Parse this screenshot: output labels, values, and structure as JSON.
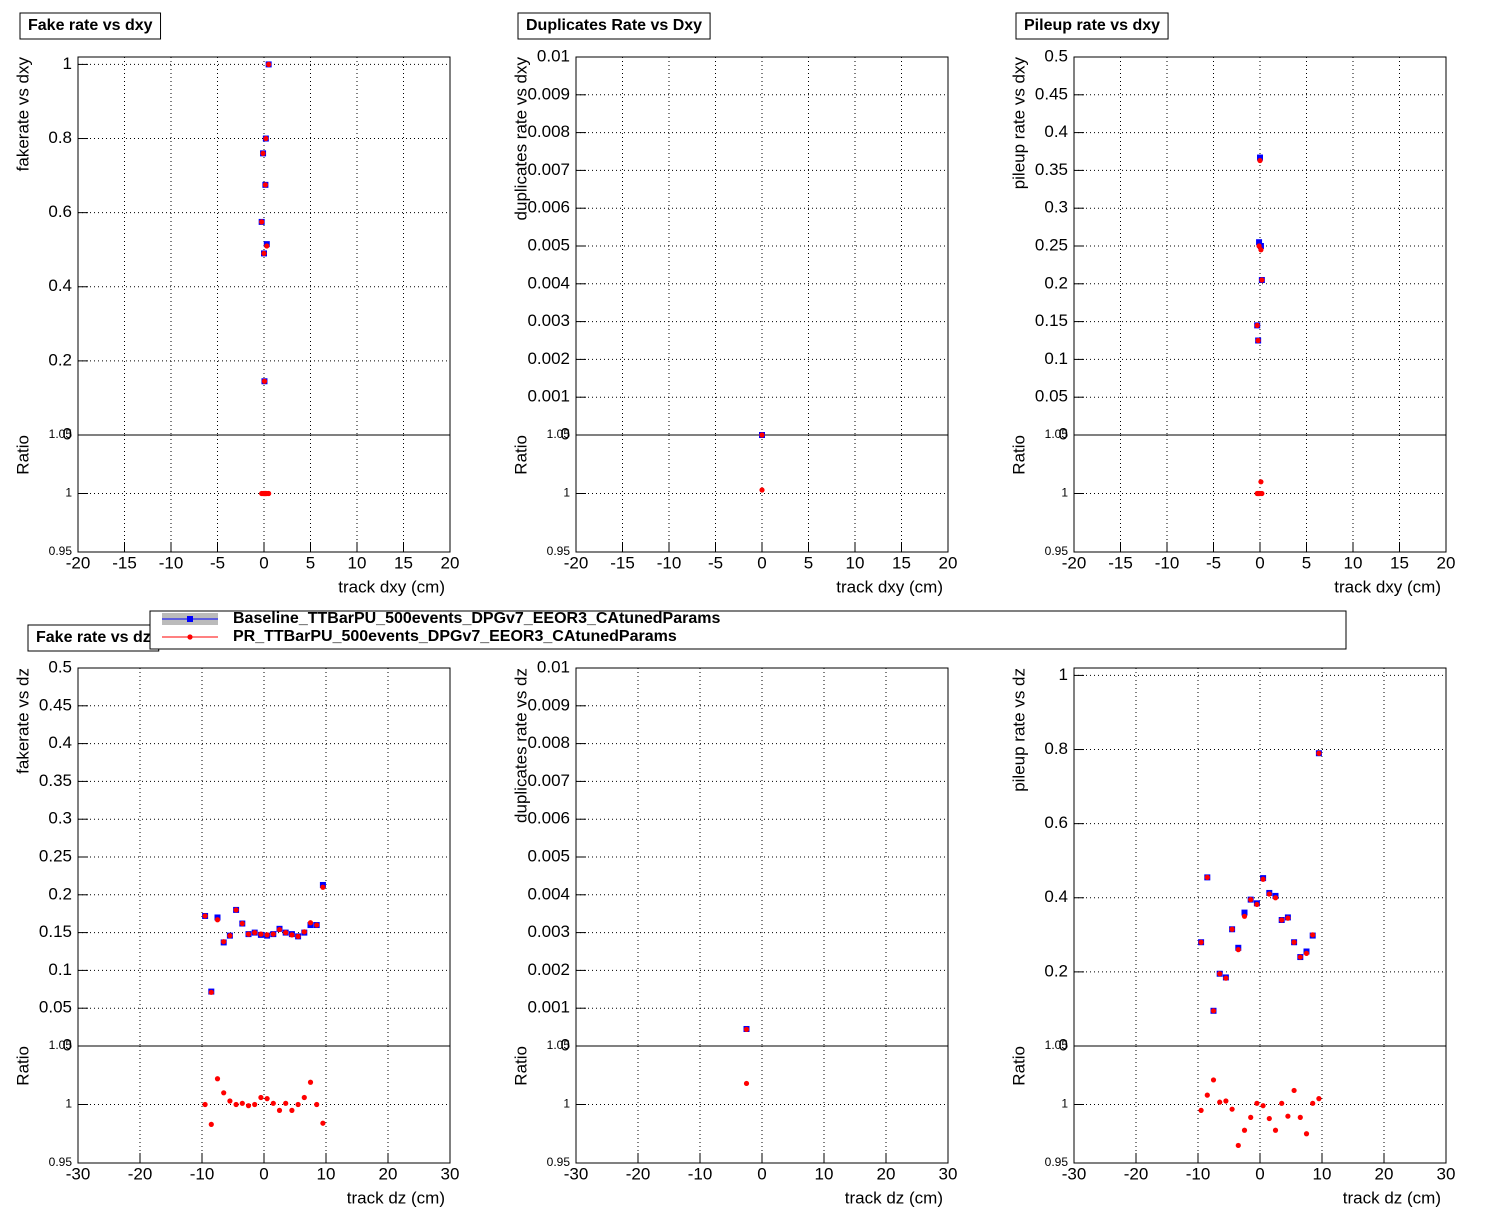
{
  "chart_data": [
    {
      "type": "scatter",
      "title": "Fake rate vs dxy",
      "ylabel": "fakerate vs dxy",
      "xlabel": "track dxy (cm)",
      "ratio_label": "Ratio",
      "xlim": [
        -20,
        20
      ],
      "xticks": [
        -20,
        -15,
        -10,
        -5,
        0,
        5,
        10,
        15,
        20
      ],
      "ylim": [
        0,
        1.02
      ],
      "yticks": [
        0,
        0.2,
        0.4,
        0.6,
        0.8,
        1
      ],
      "ratio_ylim": [
        0.95,
        1.05
      ],
      "ratio_yticks": [
        0.95,
        1,
        1.05
      ],
      "grid": true,
      "x": [
        -0.25,
        -0.1,
        0,
        0.05,
        0.15,
        0.2,
        0.3,
        0.5
      ],
      "series": [
        {
          "name": "Baseline_TTBarPU_500events_DPGv7_EEOR3_CAtunedParams",
          "color": "#0000ff",
          "values": [
            0.575,
            0.76,
            0.49,
            0.145,
            0.675,
            0.8,
            0.515,
            1.0
          ]
        },
        {
          "name": "PR_TTBarPU_500events_DPGv7_EEOR3_CAtunedParams",
          "color": "#ff0000",
          "values": [
            0.575,
            0.76,
            0.49,
            0.145,
            0.675,
            0.8,
            0.51,
            1.0
          ],
          "ratio": [
            1.0,
            1.0,
            1.0,
            1.0,
            1.0,
            1.0,
            1.0,
            1.0
          ]
        }
      ]
    },
    {
      "type": "scatter",
      "title": "Duplicates Rate vs Dxy",
      "ylabel": "duplicates rate vs dxy",
      "xlabel": "track dxy (cm)",
      "ratio_label": "Ratio",
      "xlim": [
        -20,
        20
      ],
      "xticks": [
        -20,
        -15,
        -10,
        -5,
        0,
        5,
        10,
        15,
        20
      ],
      "ylim": [
        0,
        0.01
      ],
      "yticks": [
        0,
        0.001,
        0.002,
        0.003,
        0.004,
        0.005,
        0.006,
        0.007,
        0.008,
        0.009,
        0.01
      ],
      "ratio_ylim": [
        0.95,
        1.05
      ],
      "ratio_yticks": [
        0.95,
        1,
        1.05
      ],
      "grid": true,
      "x": [
        0
      ],
      "series": [
        {
          "color": "#0000ff",
          "values": [
            0
          ]
        },
        {
          "color": "#ff0000",
          "values": [
            0
          ],
          "ratio": [
            1.003
          ]
        }
      ]
    },
    {
      "type": "scatter",
      "title": "Pileup rate vs dxy",
      "ylabel": "pileup rate vs dxy",
      "xlabel": "track dxy (cm)",
      "ratio_label": "Ratio",
      "xlim": [
        -20,
        20
      ],
      "xticks": [
        -20,
        -15,
        -10,
        -5,
        0,
        5,
        10,
        15,
        20
      ],
      "ylim": [
        0,
        0.5
      ],
      "yticks": [
        0,
        0.05,
        0.1,
        0.15,
        0.2,
        0.25,
        0.3,
        0.35,
        0.4,
        0.45,
        0.5
      ],
      "ratio_ylim": [
        0.95,
        1.05
      ],
      "ratio_yticks": [
        0.95,
        1,
        1.05
      ],
      "grid": true,
      "x": [
        -0.3,
        -0.2,
        -0.1,
        0,
        0.1,
        0.2
      ],
      "series": [
        {
          "color": "#0000ff",
          "values": [
            0.145,
            0.125,
            0.255,
            0.367,
            0.25,
            0.205
          ]
        },
        {
          "color": "#ff0000",
          "values": [
            0.145,
            0.125,
            0.25,
            0.363,
            0.245,
            0.205
          ],
          "ratio": [
            1.0,
            1.0,
            1.0,
            1.0,
            1.01,
            1.0
          ]
        }
      ]
    },
    {
      "type": "scatter",
      "title": "Fake rate vs dz",
      "ylabel": "fakerate vs dz",
      "xlabel": "track dz (cm)",
      "ratio_label": "Ratio",
      "xlim": [
        -30,
        30
      ],
      "xticks": [
        -30,
        -20,
        -10,
        0,
        10,
        20,
        30
      ],
      "ylim": [
        0,
        0.5
      ],
      "yticks": [
        0,
        0.05,
        0.1,
        0.15,
        0.2,
        0.25,
        0.3,
        0.35,
        0.4,
        0.45,
        0.5
      ],
      "ratio_ylim": [
        0.95,
        1.05
      ],
      "ratio_yticks": [
        0.95,
        1,
        1.05
      ],
      "grid": true,
      "x": [
        -9.5,
        -8.5,
        -7.5,
        -6.5,
        -5.5,
        -4.5,
        -3.5,
        -2.5,
        -1.5,
        -0.5,
        0.5,
        1.5,
        2.5,
        3.5,
        4.5,
        5.5,
        6.5,
        7.5,
        8.5,
        9.5
      ],
      "series": [
        {
          "color": "#0000ff",
          "values": [
            0.172,
            0.072,
            0.17,
            0.137,
            0.146,
            0.18,
            0.162,
            0.148,
            0.15,
            0.147,
            0.146,
            0.148,
            0.155,
            0.15,
            0.148,
            0.145,
            0.15,
            0.16,
            0.16,
            0.213
          ]
        },
        {
          "color": "#ff0000",
          "values": [
            0.172,
            0.071,
            0.167,
            0.138,
            0.146,
            0.18,
            0.162,
            0.148,
            0.15,
            0.148,
            0.147,
            0.148,
            0.154,
            0.15,
            0.147,
            0.145,
            0.151,
            0.163,
            0.16,
            0.21
          ],
          "ratio": [
            1.0,
            0.983,
            1.022,
            1.01,
            1.003,
            1.0,
            1.001,
            0.999,
            1.0,
            1.006,
            1.005,
            1.001,
            0.995,
            1.001,
            0.995,
            1.0,
            1.006,
            1.019,
            1.0,
            0.984
          ]
        }
      ]
    },
    {
      "type": "scatter",
      "ylabel": "duplicates rate vs dz",
      "xlabel": "track dz (cm)",
      "ratio_label": "Ratio",
      "xlim": [
        -30,
        30
      ],
      "xticks": [
        -30,
        -20,
        -10,
        0,
        10,
        20,
        30
      ],
      "ylim": [
        0,
        0.01
      ],
      "yticks": [
        0,
        0.001,
        0.002,
        0.003,
        0.004,
        0.005,
        0.006,
        0.007,
        0.008,
        0.009,
        0.01
      ],
      "ratio_ylim": [
        0.95,
        1.05
      ],
      "ratio_yticks": [
        0.95,
        1,
        1.05
      ],
      "grid": true,
      "x": [
        -2.5
      ],
      "series": [
        {
          "color": "#0000ff",
          "values": [
            0.00045
          ]
        },
        {
          "color": "#ff0000",
          "values": [
            0.00044
          ],
          "ratio": [
            1.018
          ]
        }
      ]
    },
    {
      "type": "scatter",
      "ylabel": "pileup rate vs dz",
      "xlabel": "track dz (cm)",
      "ratio_label": "Ratio",
      "xlim": [
        -30,
        30
      ],
      "xticks": [
        -30,
        -20,
        -10,
        0,
        10,
        20,
        30
      ],
      "ylim": [
        0,
        1.02
      ],
      "yticks": [
        0,
        0.2,
        0.4,
        0.6,
        0.8,
        1
      ],
      "ratio_ylim": [
        0.95,
        1.05
      ],
      "ratio_yticks": [
        0.95,
        1,
        1.05
      ],
      "grid": true,
      "x": [
        -9.5,
        -8.5,
        -7.5,
        -6.5,
        -5.5,
        -4.5,
        -3.5,
        -2.5,
        -1.5,
        -0.5,
        0.5,
        1.5,
        2.5,
        3.5,
        4.5,
        5.5,
        6.5,
        7.5,
        8.5,
        9.5
      ],
      "series": [
        {
          "color": "#0000ff",
          "values": [
            0.28,
            0.455,
            0.095,
            0.195,
            0.185,
            0.315,
            0.265,
            0.36,
            0.395,
            0.385,
            0.453,
            0.413,
            0.405,
            0.34,
            0.347,
            0.28,
            0.24,
            0.255,
            0.298,
            0.79
          ]
        },
        {
          "color": "#ff0000",
          "values": [
            0.28,
            0.455,
            0.095,
            0.195,
            0.183,
            0.315,
            0.26,
            0.35,
            0.395,
            0.382,
            0.45,
            0.41,
            0.4,
            0.34,
            0.345,
            0.28,
            0.24,
            0.25,
            0.3,
            0.79
          ],
          "ratio": [
            0.995,
            1.008,
            1.021,
            1.002,
            1.003,
            0.996,
            0.965,
            0.978,
            0.989,
            1.001,
            0.999,
            0.988,
            0.978,
            1.001,
            0.99,
            1.012,
            0.989,
            0.975,
            1.001,
            1.005
          ]
        }
      ]
    }
  ]
}
